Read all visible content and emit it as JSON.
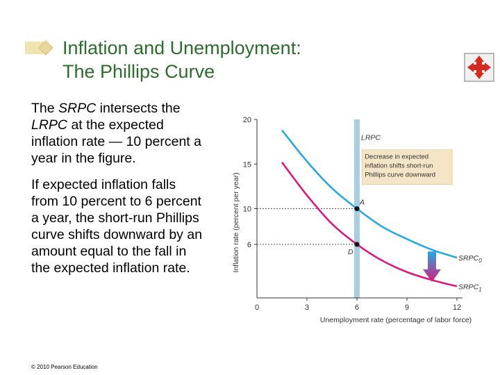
{
  "title": {
    "line1": "Inflation and Unemployment:",
    "line2": "The Phillips Curve"
  },
  "body": {
    "p1_parts": [
      "The ",
      "SRPC",
      " intersects the ",
      "LRPC",
      " at the expected inflation rate — 10 percent a year in the figure."
    ],
    "p2": "If expected inflation falls from 10 percent to 6 percent a year, the short-run Phillips curve shifts downward by an amount equal to the fall in the expected inflation rate."
  },
  "footer": "© 2010 Pearson Education",
  "icons": {
    "title_decoration": "bullet-diamond-icon",
    "navigation": "four-way-arrows-icon"
  },
  "colors": {
    "title": "#2f6b2f",
    "srpc0": "#29a8e0",
    "srpc1": "#d81b7a",
    "lrpc": "#a9cde3",
    "annotation_bg": "#f6e4c6"
  },
  "chart_data": {
    "type": "line",
    "xlabel": "Unemployment rate (percentage of labor force)",
    "ylabel": "Inflation rate (percent per year)",
    "xlim": [
      0,
      12
    ],
    "ylim": [
      0,
      20
    ],
    "x_ticks": [
      0,
      3,
      6,
      9,
      12
    ],
    "y_ticks": [
      6,
      10,
      15,
      20
    ],
    "lrpc": {
      "label": "LRPC",
      "x": 6
    },
    "series": [
      {
        "name": "SRPC0",
        "label_base": "SRPC",
        "label_sub": "0",
        "points": [
          [
            1.5,
            18.8
          ],
          [
            3,
            15.3
          ],
          [
            4.5,
            12.3
          ],
          [
            6,
            10
          ],
          [
            7.5,
            8
          ],
          [
            9,
            6.6
          ],
          [
            10.5,
            5.4
          ],
          [
            12,
            4.5
          ]
        ]
      },
      {
        "name": "SRPC1",
        "label_base": "SRPC",
        "label_sub": "1",
        "points": [
          [
            1.5,
            15.2
          ],
          [
            3,
            11.5
          ],
          [
            4.5,
            8.3
          ],
          [
            6,
            6
          ],
          [
            7.5,
            4.2
          ],
          [
            9,
            2.9
          ],
          [
            10.5,
            2
          ],
          [
            12,
            1.3
          ]
        ]
      }
    ],
    "points": [
      {
        "label": "A",
        "x": 6,
        "y": 10
      },
      {
        "label": "D",
        "x": 6,
        "y": 6
      }
    ],
    "annotation": [
      "Decrease in expected",
      "inflation shifts short-run",
      "Phillips curve downward"
    ]
  }
}
